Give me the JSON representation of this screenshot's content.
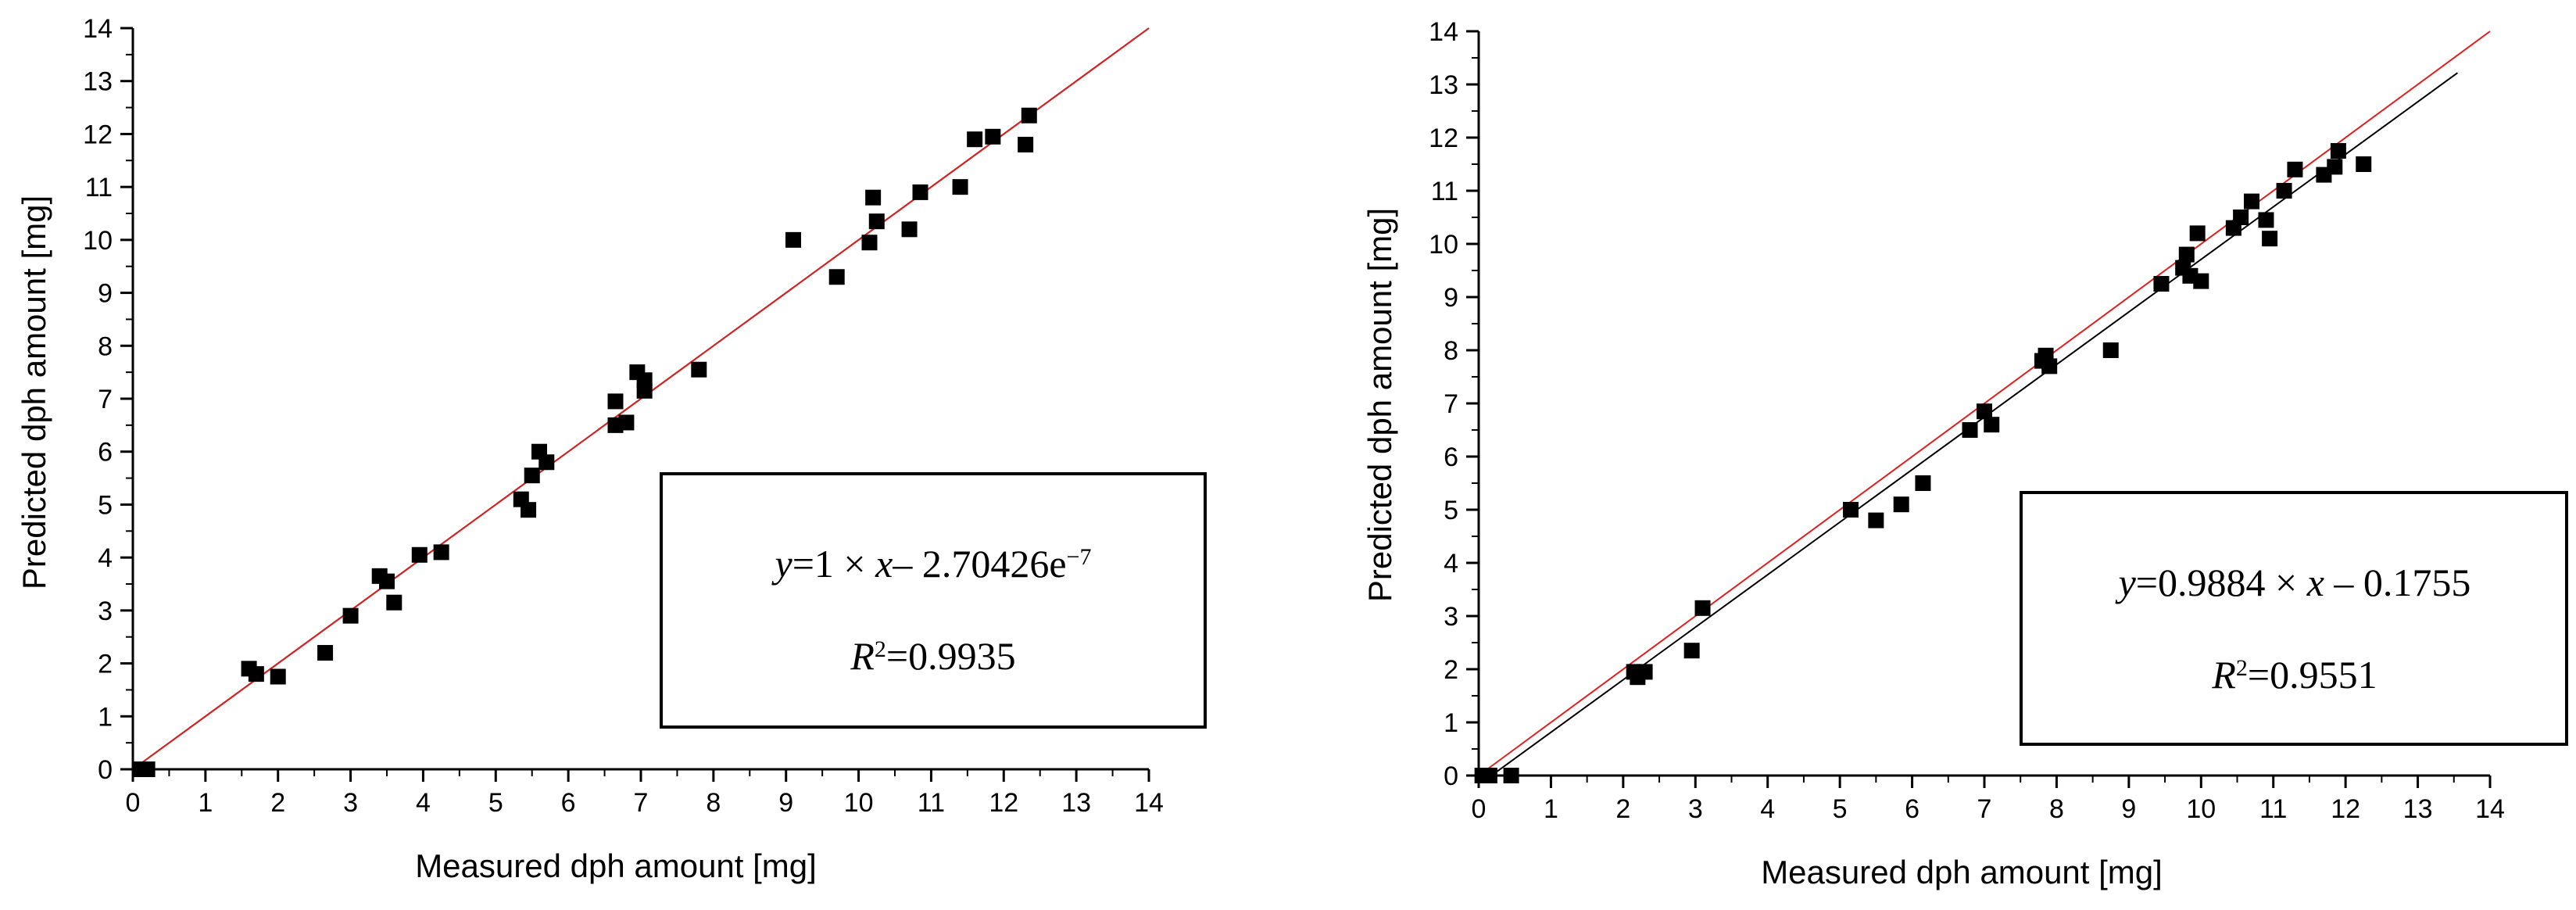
{
  "chart_data": [
    {
      "type": "scatter",
      "xlabel": "Measured dph amount [mg]",
      "ylabel": "Predicted dph amount [mg]",
      "xlim": [
        0,
        14
      ],
      "ylim": [
        0,
        14
      ],
      "xticks": [
        "0",
        "1",
        "2",
        "3",
        "4",
        "5",
        "6",
        "7",
        "8",
        "9",
        "10",
        "11",
        "12",
        "13",
        "14"
      ],
      "yticks": [
        "0",
        "1",
        "2",
        "3",
        "4",
        "5",
        "6",
        "7",
        "8",
        "9",
        "10",
        "11",
        "12",
        "13",
        "14"
      ],
      "lines": [
        {
          "name": "fit",
          "color": "#000000",
          "slope": 1,
          "intercept": 0,
          "x_range": [
            0,
            14
          ]
        },
        {
          "name": "ideal",
          "color": "#e02020",
          "slope": 1,
          "intercept": 0,
          "x_range": [
            0,
            14
          ]
        }
      ],
      "points": [
        [
          0.1,
          0.0
        ],
        [
          0.2,
          0.0
        ],
        [
          1.6,
          1.9
        ],
        [
          1.7,
          1.8
        ],
        [
          2.0,
          1.75
        ],
        [
          2.65,
          2.2
        ],
        [
          3.0,
          2.9
        ],
        [
          3.4,
          3.65
        ],
        [
          3.5,
          3.55
        ],
        [
          3.6,
          3.15
        ],
        [
          3.95,
          4.05
        ],
        [
          4.25,
          4.1
        ],
        [
          5.35,
          5.1
        ],
        [
          5.45,
          4.9
        ],
        [
          5.5,
          5.55
        ],
        [
          5.6,
          6.0
        ],
        [
          5.7,
          5.8
        ],
        [
          6.65,
          6.95
        ],
        [
          6.65,
          6.5
        ],
        [
          6.8,
          6.55
        ],
        [
          6.95,
          7.5
        ],
        [
          7.05,
          7.35
        ],
        [
          7.05,
          7.15
        ],
        [
          7.8,
          7.55
        ],
        [
          9.1,
          10.0
        ],
        [
          9.7,
          9.3
        ],
        [
          10.15,
          9.95
        ],
        [
          10.2,
          10.8
        ],
        [
          10.25,
          10.35
        ],
        [
          10.7,
          10.2
        ],
        [
          10.85,
          10.9
        ],
        [
          11.4,
          11.0
        ],
        [
          11.6,
          11.9
        ],
        [
          11.85,
          11.95
        ],
        [
          12.3,
          11.8
        ],
        [
          12.35,
          12.35
        ]
      ],
      "equation": {
        "y": "y",
        "equals": "=1 × ",
        "x": "x",
        "rest": "– 2.70426e",
        "exponent": "−7"
      },
      "r2": {
        "R": "R",
        "sup": "2",
        "value": "=0.9935"
      }
    },
    {
      "type": "scatter",
      "xlabel": "Measured dph amount [mg]",
      "ylabel": "Predicted dph amount [mg]",
      "xlim": [
        0,
        14
      ],
      "ylim": [
        0,
        14
      ],
      "xticks": [
        "0",
        "1",
        "2",
        "3",
        "4",
        "5",
        "6",
        "7",
        "8",
        "9",
        "10",
        "11",
        "12",
        "13",
        "14"
      ],
      "yticks": [
        "0",
        "1",
        "2",
        "3",
        "4",
        "5",
        "6",
        "7",
        "8",
        "9",
        "10",
        "11",
        "12",
        "13",
        "14"
      ],
      "lines": [
        {
          "name": "fit",
          "color": "#000000",
          "slope": 0.9884,
          "intercept": -0.1755,
          "x_range": [
            0.2,
            13.55
          ]
        },
        {
          "name": "ideal",
          "color": "#e02020",
          "slope": 1,
          "intercept": 0,
          "x_range": [
            0,
            14
          ]
        }
      ],
      "points": [
        [
          0.05,
          0.0
        ],
        [
          0.15,
          0.0
        ],
        [
          0.45,
          0.0
        ],
        [
          2.15,
          1.95
        ],
        [
          2.2,
          1.85
        ],
        [
          2.3,
          1.95
        ],
        [
          2.95,
          2.35
        ],
        [
          3.1,
          3.15
        ],
        [
          5.15,
          5.0
        ],
        [
          5.5,
          4.8
        ],
        [
          5.85,
          5.1
        ],
        [
          6.15,
          5.5
        ],
        [
          6.8,
          6.5
        ],
        [
          7.0,
          6.85
        ],
        [
          7.1,
          6.6
        ],
        [
          7.8,
          7.8
        ],
        [
          7.85,
          7.9
        ],
        [
          7.9,
          7.7
        ],
        [
          8.75,
          8.0
        ],
        [
          9.45,
          9.25
        ],
        [
          9.75,
          9.55
        ],
        [
          9.8,
          9.8
        ],
        [
          9.85,
          9.4
        ],
        [
          9.95,
          10.2
        ],
        [
          10.0,
          9.3
        ],
        [
          10.45,
          10.3
        ],
        [
          10.55,
          10.5
        ],
        [
          10.7,
          10.8
        ],
        [
          10.9,
          10.45
        ],
        [
          10.95,
          10.1
        ],
        [
          11.15,
          11.0
        ],
        [
          11.3,
          11.4
        ],
        [
          11.7,
          11.3
        ],
        [
          11.85,
          11.45
        ],
        [
          11.9,
          11.75
        ],
        [
          12.25,
          11.5
        ]
      ],
      "equation": {
        "y": "y",
        "equals": "=0.9884 × ",
        "x": "x",
        "rest": " – 0.1755",
        "exponent": ""
      },
      "r2": {
        "R": "R",
        "sup": "2",
        "value": "=0.9551"
      }
    }
  ]
}
